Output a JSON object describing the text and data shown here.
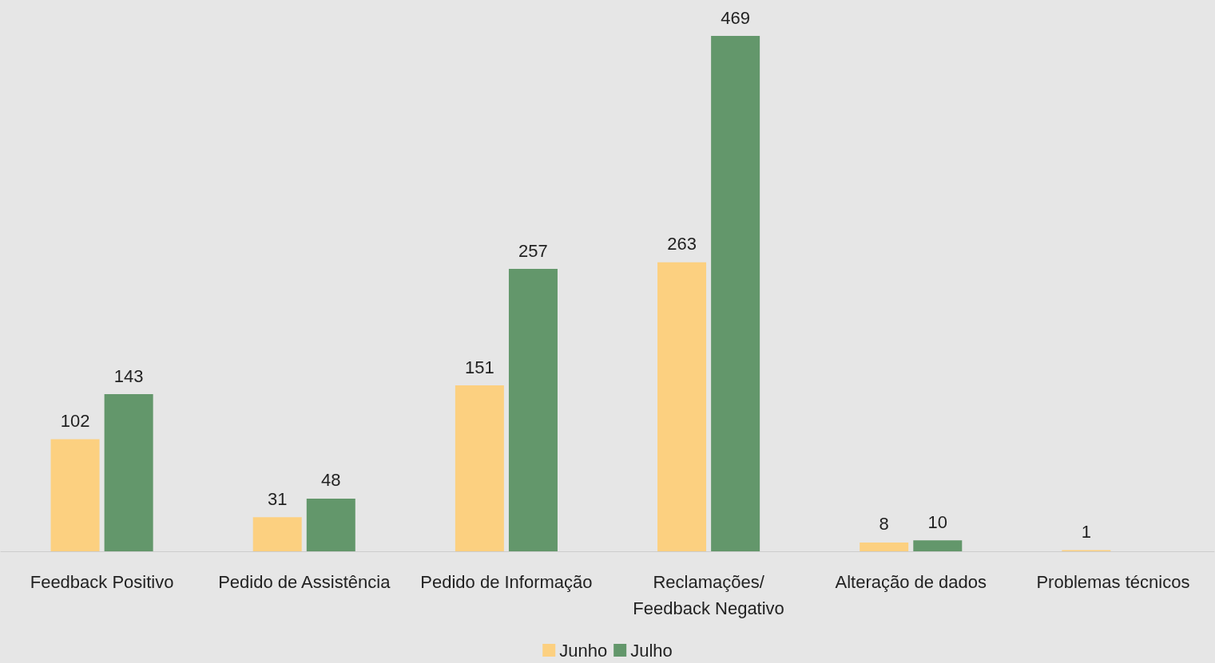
{
  "chart_data": {
    "type": "bar",
    "categories": [
      "Feedback Positivo",
      "Pedido de Assistência",
      "Pedido de Informação",
      "Reclamações/Feedback Negativo",
      "Alteração de dados",
      "Problemas técnicos"
    ],
    "series": [
      {
        "name": "Junho",
        "color": "#fcd080",
        "values": [
          102,
          31,
          151,
          263,
          8,
          1
        ]
      },
      {
        "name": "Julho",
        "color": "#63976b",
        "values": [
          143,
          48,
          257,
          469,
          10,
          null
        ]
      }
    ],
    "data_labels": true,
    "legend": "bottom",
    "grid": false
  }
}
